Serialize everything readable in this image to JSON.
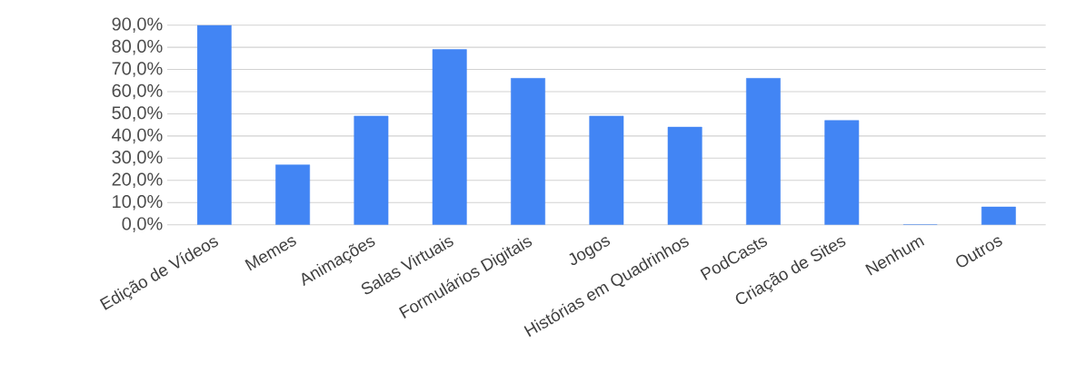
{
  "chart_data": {
    "type": "bar",
    "categories": [
      "Edição de Vídeos",
      "Memes",
      "Animações",
      "Salas Virtuais",
      "Formulários Digitais",
      "Jogos",
      "Histórias em Quadrinhos",
      "PodCasts",
      "Criação de Sites",
      "Nenhum",
      "Outros"
    ],
    "values": [
      90,
      27,
      49,
      79,
      66,
      49,
      44,
      66,
      47,
      0,
      8
    ],
    "color": "#4285f4",
    "ylim": [
      0,
      90
    ],
    "yticks": [
      {
        "value": 0,
        "label": "0,0%"
      },
      {
        "value": 10,
        "label": "10,0%"
      },
      {
        "value": 20,
        "label": "20,0%"
      },
      {
        "value": 30,
        "label": "30,0%"
      },
      {
        "value": 40,
        "label": "40,0%"
      },
      {
        "value": 50,
        "label": "50,0%"
      },
      {
        "value": 60,
        "label": "60,0%"
      },
      {
        "value": 70,
        "label": "70,0%"
      },
      {
        "value": 80,
        "label": "80,0%"
      },
      {
        "value": 90,
        "label": "90,0%"
      }
    ],
    "grid": "y"
  }
}
